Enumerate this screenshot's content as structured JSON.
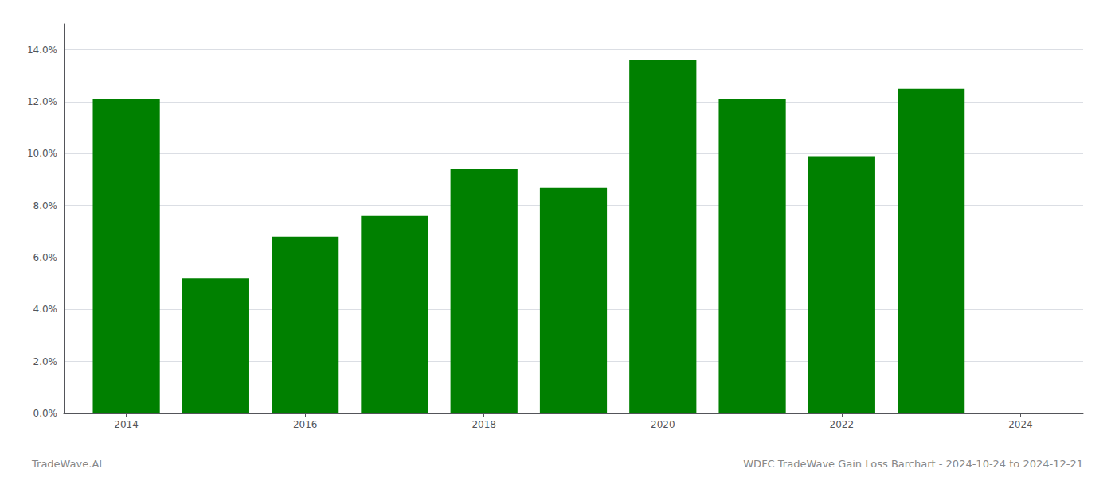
{
  "chart_data": {
    "type": "bar",
    "x": [
      2014,
      2015,
      2016,
      2017,
      2018,
      2019,
      2020,
      2021,
      2022,
      2023
    ],
    "values": [
      0.121,
      0.052,
      0.068,
      0.076,
      0.094,
      0.087,
      0.136,
      0.121,
      0.099,
      0.125
    ],
    "color": "#008000",
    "xlim": [
      2013.3,
      2024.7
    ],
    "xticks": [
      2014,
      2016,
      2018,
      2020,
      2022,
      2024
    ],
    "ylim": [
      0,
      0.15
    ],
    "yticks": [
      {
        "value": 0,
        "label": "0.0%"
      },
      {
        "value": 0.02,
        "label": "2.0%"
      },
      {
        "value": 0.04,
        "label": "4.0%"
      },
      {
        "value": 0.06,
        "label": "6.0%"
      },
      {
        "value": 0.08,
        "label": "8.0%"
      },
      {
        "value": 0.1,
        "label": "10.0%"
      },
      {
        "value": 0.12,
        "label": "12.0%"
      },
      {
        "value": 0.14,
        "label": "14.0%"
      }
    ],
    "grid": true,
    "annotations": [
      "TradeWave.AI",
      "WDFC TradeWave Gain Loss Barchart - 2024-10-24 to 2024-12-21"
    ]
  }
}
